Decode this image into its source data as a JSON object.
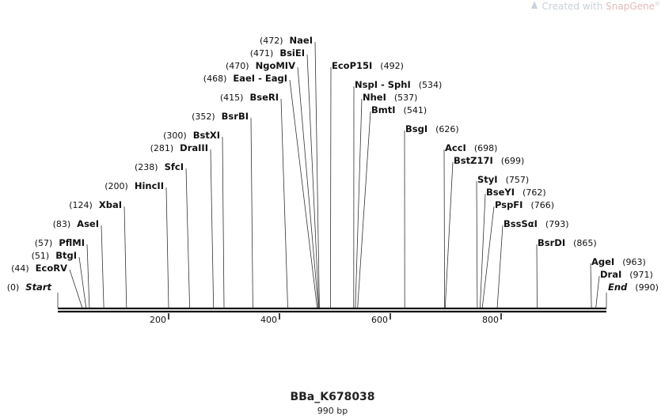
{
  "watermark": {
    "prefix": "Created with ",
    "brand": "SnapGene",
    "mark": "®"
  },
  "sequence": {
    "name": "BBa_K678038",
    "length_label": "990 bp",
    "length": 990
  },
  "ruler": {
    "ticks": [
      "200",
      "400",
      "600",
      "800"
    ],
    "tick_values": [
      200,
      400,
      600,
      800
    ]
  },
  "sites": [
    {
      "name": "Start",
      "pos": 0,
      "pos_label": "(0)",
      "italic": true,
      "side": "left"
    },
    {
      "name": "EcoRV",
      "pos": 44,
      "pos_label": "(44)",
      "side": "left"
    },
    {
      "name": "BtgI",
      "pos": 51,
      "pos_label": "(51)",
      "side": "left"
    },
    {
      "name": "PflMI",
      "pos": 57,
      "pos_label": "(57)",
      "side": "left"
    },
    {
      "name": "AseI",
      "pos": 83,
      "pos_label": "(83)",
      "side": "left"
    },
    {
      "name": "XbaI",
      "pos": 124,
      "pos_label": "(124)",
      "side": "left"
    },
    {
      "name": "HincII",
      "pos": 200,
      "pos_label": "(200)",
      "side": "left"
    },
    {
      "name": "SfcI",
      "pos": 238,
      "pos_label": "(238)",
      "side": "left"
    },
    {
      "name": "DraIII",
      "pos": 281,
      "pos_label": "(281)",
      "side": "left"
    },
    {
      "name": "BstXI",
      "pos": 300,
      "pos_label": "(300)",
      "side": "left"
    },
    {
      "name": "BsrBI",
      "pos": 352,
      "pos_label": "(352)",
      "side": "left"
    },
    {
      "name": "BseRI",
      "pos": 415,
      "pos_label": "(415)",
      "side": "left"
    },
    {
      "name": "EaeI - EagI",
      "pos": 468,
      "pos_label": "(468)",
      "side": "left"
    },
    {
      "name": "NgoMIV",
      "pos": 470,
      "pos_label": "(470)",
      "side": "left"
    },
    {
      "name": "BsiEI",
      "pos": 471,
      "pos_label": "(471)",
      "side": "left"
    },
    {
      "name": "NaeI",
      "pos": 472,
      "pos_label": "(472)",
      "side": "left"
    },
    {
      "name": "EcoP15I",
      "pos": 492,
      "pos_label": "(492)",
      "side": "right"
    },
    {
      "name": "NspI - SphI",
      "pos": 534,
      "pos_label": "(534)",
      "side": "right"
    },
    {
      "name": "NheI",
      "pos": 537,
      "pos_label": "(537)",
      "side": "right"
    },
    {
      "name": "BmtI",
      "pos": 541,
      "pos_label": "(541)",
      "side": "right"
    },
    {
      "name": "BsgI",
      "pos": 626,
      "pos_label": "(626)",
      "side": "right"
    },
    {
      "name": "AccI",
      "pos": 698,
      "pos_label": "(698)",
      "side": "right"
    },
    {
      "name": "BstZ17I",
      "pos": 699,
      "pos_label": "(699)",
      "side": "right"
    },
    {
      "name": "StyI",
      "pos": 757,
      "pos_label": "(757)",
      "side": "right"
    },
    {
      "name": "BseYI",
      "pos": 762,
      "pos_label": "(762)",
      "side": "right"
    },
    {
      "name": "PspFI",
      "pos": 766,
      "pos_label": "(766)",
      "side": "right"
    },
    {
      "name": "BssSαI",
      "pos": 793,
      "pos_label": "(793)",
      "side": "right"
    },
    {
      "name": "BsrDI",
      "pos": 865,
      "pos_label": "(865)",
      "side": "right"
    },
    {
      "name": "AgeI",
      "pos": 963,
      "pos_label": "(963)",
      "side": "right"
    },
    {
      "name": "DraI",
      "pos": 971,
      "pos_label": "(971)",
      "side": "right"
    },
    {
      "name": "End",
      "pos": 990,
      "pos_label": "(990)",
      "italic": true,
      "side": "right"
    }
  ],
  "colors": {
    "line": "#333333",
    "backbone": "#111111",
    "label": "#111111"
  }
}
